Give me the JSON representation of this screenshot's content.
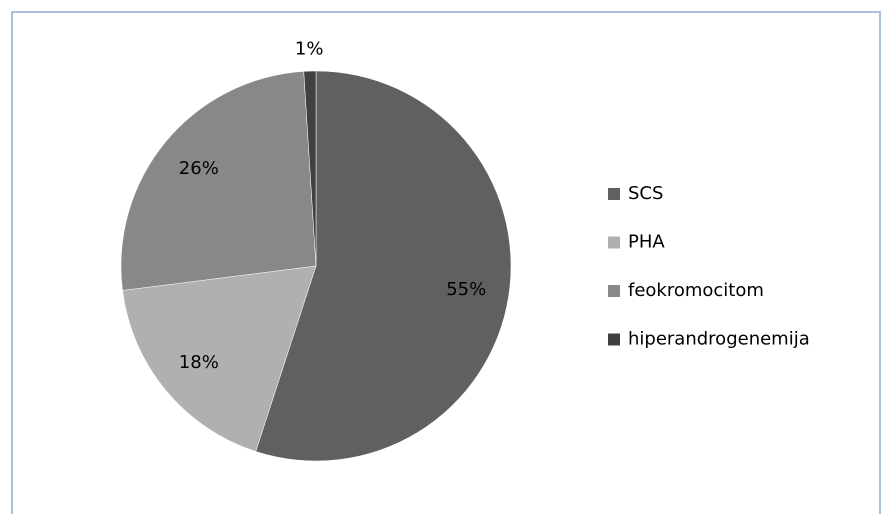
{
  "chart_data": {
    "type": "pie",
    "categories": [
      "SCS",
      "PHA",
      "feokromocitom",
      "hiperandrogenemija"
    ],
    "values": [
      55,
      18,
      26,
      1
    ],
    "value_labels": [
      "55%",
      "18%",
      "26%",
      "1%"
    ],
    "colors": [
      "#606060",
      "#b0b0b0",
      "#888888",
      "#404040"
    ],
    "legend": "right"
  }
}
